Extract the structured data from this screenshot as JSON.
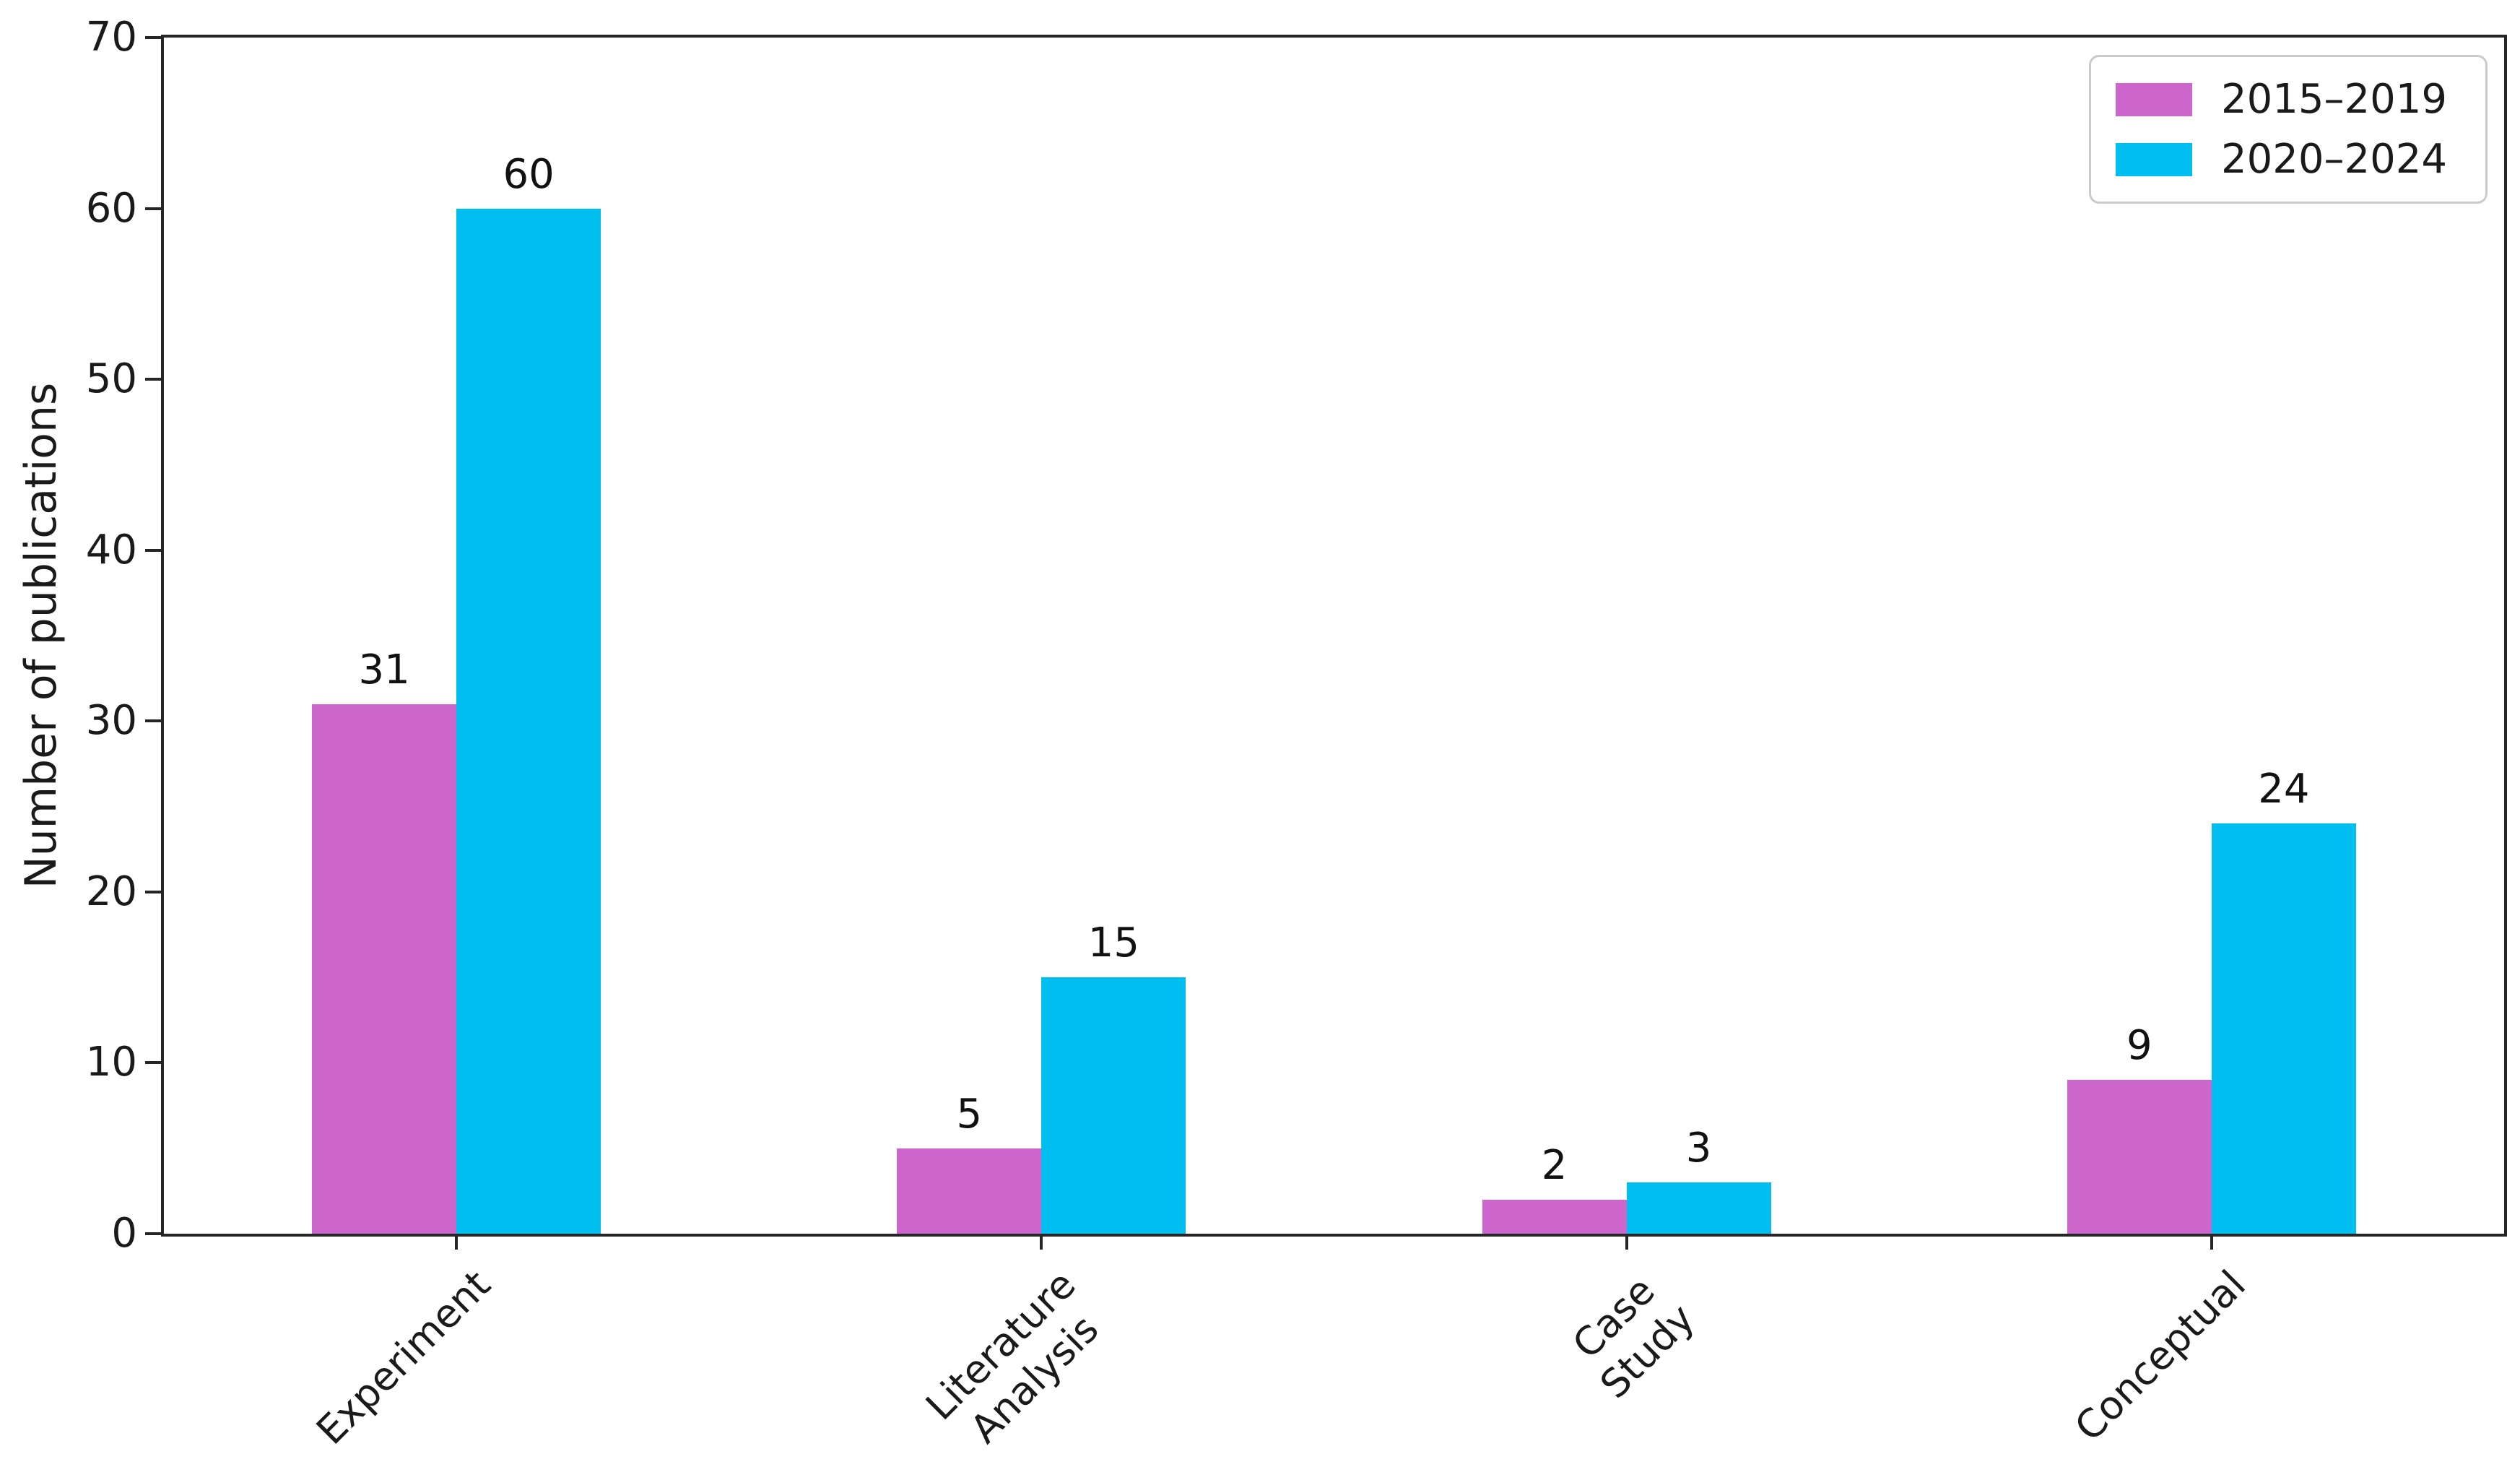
{
  "figure": {
    "background": "#ffffff",
    "frame_color": "#262626",
    "text_color": "#1a1a1a"
  },
  "chart_data": {
    "type": "bar",
    "title": "",
    "xlabel": "",
    "ylabel": "Number of publications",
    "categories": [
      "Experiment",
      "Literature\nAnalysis",
      "Case Study",
      "Conceptual"
    ],
    "series": [
      {
        "name": "2015–2019",
        "color": "#CC66CC",
        "values": [
          31,
          5,
          2,
          9
        ]
      },
      {
        "name": "2020–2024",
        "color": "#00BFF0",
        "values": [
          60,
          15,
          3,
          24
        ]
      }
    ],
    "bar_value_labels": [
      "31",
      "60",
      "5",
      "15",
      "2",
      "3",
      "9",
      "24"
    ],
    "ylim": [
      0,
      70
    ],
    "yticks": [
      "0",
      "10",
      "20",
      "30",
      "40",
      "50",
      "60",
      "70"
    ],
    "grid": false,
    "legend_position": "upper right",
    "legend_border_color": "#cbcbcb",
    "x_tick_label_rotation_deg": 45
  }
}
